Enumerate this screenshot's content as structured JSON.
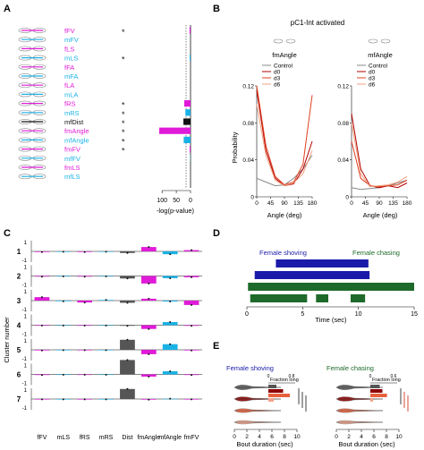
{
  "panel_labels": [
    "A",
    "B",
    "C",
    "D",
    "E"
  ],
  "colors": {
    "magenta": "#e01bd8",
    "cyan": "#1ab2e6",
    "black": "#111111",
    "gray": "#555555",
    "navy": "#1a1aaa",
    "dark_green": "#1e6a2a",
    "red_dark": "#8b0000",
    "red": "#cc2200",
    "orange": "#e8603c",
    "pink": "#f2a38a",
    "light": "#f6c8b6"
  },
  "panelA": {
    "features": [
      {
        "label": "fFV",
        "color": "magenta",
        "star": true,
        "value": 3.5
      },
      {
        "label": "mFV",
        "color": "cyan",
        "star": false,
        "value": 0
      },
      {
        "label": "fLS",
        "color": "magenta",
        "star": false,
        "value": 0
      },
      {
        "label": "mLS",
        "color": "cyan",
        "star": true,
        "value": 3.0
      },
      {
        "label": "fFA",
        "color": "magenta",
        "star": false,
        "value": 0
      },
      {
        "label": "mFA",
        "color": "cyan",
        "star": false,
        "value": 0
      },
      {
        "label": "fLA",
        "color": "magenta",
        "star": false,
        "value": 0
      },
      {
        "label": "mLA",
        "color": "cyan",
        "star": false,
        "value": 0
      },
      {
        "label": "fRS",
        "color": "magenta",
        "star": true,
        "value": 22
      },
      {
        "label": "mRS",
        "color": "cyan",
        "star": true,
        "value": 18
      },
      {
        "label": "mfDist",
        "color": "black",
        "star": true,
        "value": 25
      },
      {
        "label": "fmAngle",
        "color": "magenta",
        "star": true,
        "value": 110
      },
      {
        "label": "mfAngle",
        "color": "cyan",
        "star": true,
        "value": 24
      },
      {
        "label": "fmFV",
        "color": "magenta",
        "star": true,
        "value": 3
      },
      {
        "label": "mfFV",
        "color": "cyan",
        "star": false,
        "value": 1
      },
      {
        "label": "fmLS",
        "color": "magenta",
        "star": false,
        "value": 0
      },
      {
        "label": "mfLS",
        "color": "cyan",
        "star": false,
        "value": 0
      }
    ],
    "star_symbol": "*",
    "xticks": [
      "100",
      "50",
      "0"
    ],
    "xlabel": "-log(p-value)"
  },
  "panelB": {
    "title": "pC1-Int activated",
    "subplots": [
      {
        "title": "fmAngle",
        "ylim": [
          0,
          0.12
        ],
        "yticks": [
          "0",
          "0.04",
          "0.08",
          "0.12"
        ]
      },
      {
        "title": "mfAngle",
        "ylim": [
          0,
          0.12
        ],
        "yticks": [
          "0",
          "0.04",
          "0.08",
          "0.12"
        ]
      }
    ],
    "legend": [
      "Control",
      "d0",
      "d3",
      "d6"
    ],
    "xticks": [
      "0",
      "45",
      "90",
      "135",
      "180"
    ],
    "xlabel": "Angle (deg)",
    "ylabel": "Probability"
  },
  "panelC": {
    "ylabel": "Cluster number",
    "categories": [
      "fFV",
      "mLS",
      "fRS",
      "mRS",
      "Dist",
      "fmAngle",
      "mfAngle",
      "fmFV"
    ],
    "cat_colors": [
      "magenta",
      "cyan",
      "magenta",
      "cyan",
      "gray",
      "magenta",
      "cyan",
      "magenta"
    ],
    "ytick_top": "1",
    "ytick_bottom": "-1",
    "clusters": [
      {
        "label": "1",
        "values": [
          -0.1,
          -0.05,
          -0.1,
          -0.05,
          -0.25,
          0.7,
          -0.45,
          0.2
        ]
      },
      {
        "label": "2",
        "values": [
          -0.1,
          -0.05,
          -0.1,
          -0.05,
          -0.4,
          -1.2,
          -0.35,
          -0.2
        ]
      },
      {
        "label": "3",
        "values": [
          0.55,
          -0.1,
          -0.3,
          0.1,
          -0.35,
          0.3,
          -0.15,
          -0.7
        ]
      },
      {
        "label": "4",
        "values": [
          -0.05,
          -0.05,
          -0.05,
          -0.05,
          -0.1,
          -0.6,
          0.5,
          -0.1
        ]
      },
      {
        "label": "5",
        "values": [
          -0.1,
          -0.05,
          -0.05,
          -0.05,
          1.6,
          -0.7,
          0.9,
          -0.1
        ]
      },
      {
        "label": "6",
        "values": [
          -0.1,
          -0.05,
          -0.05,
          -0.05,
          2.3,
          -0.35,
          0.5,
          -0.1
        ]
      },
      {
        "label": "7",
        "values": [
          -0.05,
          -0.05,
          -0.05,
          -0.05,
          1.6,
          -0.1,
          0.05,
          -0.05
        ]
      }
    ]
  },
  "panelD": {
    "label_shoving": "Female shoving",
    "label_chasing": "Female chasing",
    "xticks": [
      "0",
      "5",
      "10",
      "15"
    ],
    "xlabel": "Time (sec)",
    "xlim": [
      0,
      15
    ],
    "rows": [
      {
        "color": "navy",
        "segments": [
          [
            2.6,
            10.9
          ]
        ]
      },
      {
        "color": "navy",
        "segments": [
          [
            0.7,
            11
          ]
        ]
      },
      {
        "color": "dark_green",
        "segments": [
          [
            0.1,
            15
          ]
        ]
      },
      {
        "color": "dark_green",
        "segments": [
          [
            0.3,
            5.4
          ],
          [
            6.2,
            7.3
          ],
          [
            9.3,
            10.6
          ]
        ]
      }
    ]
  },
  "panelE": {
    "left": {
      "title": "Female shoving",
      "inset_label": "Fraction long",
      "inset_ticks": [
        "0",
        "0.8"
      ],
      "fractions": [
        0.3,
        0.55,
        0.8,
        0.2
      ]
    },
    "right": {
      "title": "Female chasing",
      "inset_label": "Fraction long",
      "inset_ticks": [
        "0",
        "0.6"
      ],
      "fractions": [
        0.35,
        0.45,
        0.62,
        0.1
      ]
    },
    "xticks": [
      "0",
      "2",
      "4",
      "6",
      "8",
      "10"
    ],
    "xlabel": "Bout duration (sec)",
    "violin_colors": [
      "gray",
      "red_dark",
      "orange",
      "pink"
    ]
  }
}
